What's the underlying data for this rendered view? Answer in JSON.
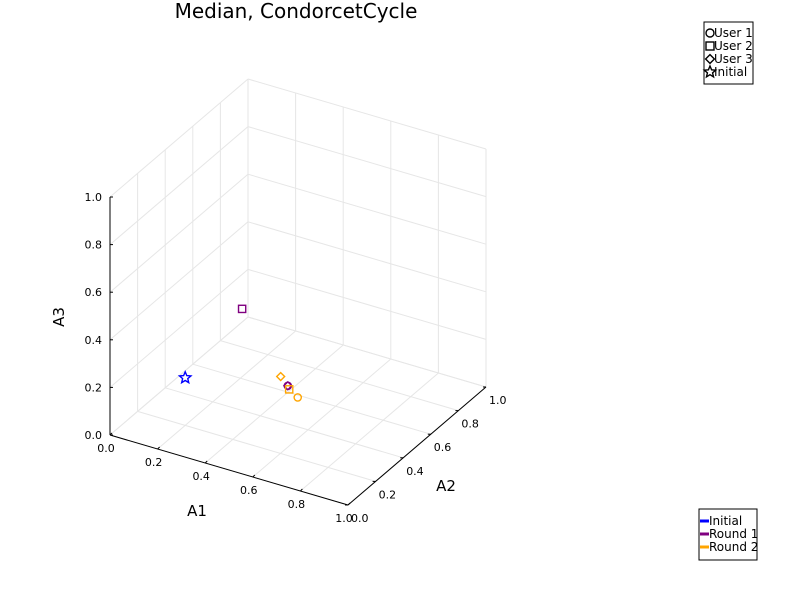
{
  "chart_data": {
    "type": "scatter",
    "title": "Median, CondorcetCycle",
    "xlabel": "A1",
    "ylabel": "A2",
    "zlabel": "A3",
    "xlim": [
      0,
      1
    ],
    "ylim": [
      0,
      1
    ],
    "zlim": [
      0,
      1
    ],
    "ticks": [
      "0.0",
      "0.2",
      "0.4",
      "0.6",
      "0.8",
      "1.0"
    ],
    "grid": true,
    "marker_legend": {
      "placement": "top-right",
      "entries": [
        {
          "label": "User 1",
          "marker": "circle"
        },
        {
          "label": "User 2",
          "marker": "square"
        },
        {
          "label": "User 3",
          "marker": "diamond"
        },
        {
          "label": "Initial",
          "marker": "star"
        }
      ]
    },
    "color_legend": {
      "placement": "bottom-right",
      "entries": [
        {
          "label": "Initial",
          "color": "#0000ff"
        },
        {
          "label": "Round 1",
          "color": "#800080"
        },
        {
          "label": "Round 2",
          "color": "#ffa500"
        }
      ]
    },
    "points": [
      {
        "series": "Initial",
        "user": "Initial",
        "marker": "star",
        "color": "#0000ff",
        "x": 0.2,
        "y": 0.2,
        "z": 0.2
      },
      {
        "series": "Round 1",
        "user": "User 1",
        "marker": "circle",
        "color": "#800080",
        "x": 0.55,
        "y": 0.34,
        "z": 0.2
      },
      {
        "series": "Round 1",
        "user": "User 2",
        "marker": "square",
        "color": "#800080",
        "x": 0.3,
        "y": 0.44,
        "z": 0.4
      },
      {
        "series": "Round 1",
        "user": "User 3",
        "marker": "diamond",
        "color": "#800080",
        "x": 0.55,
        "y": 0.34,
        "z": 0.2
      },
      {
        "series": "Round 2",
        "user": "User 1",
        "marker": "circle",
        "color": "#ffa500",
        "x": 0.58,
        "y": 0.36,
        "z": 0.15
      },
      {
        "series": "Round 2",
        "user": "User 2",
        "marker": "square",
        "color": "#ffa500",
        "x": 0.55,
        "y": 0.35,
        "z": 0.18
      },
      {
        "series": "Round 2",
        "user": "User 3",
        "marker": "diamond",
        "color": "#ffa500",
        "x": 0.52,
        "y": 0.34,
        "z": 0.23
      }
    ]
  }
}
